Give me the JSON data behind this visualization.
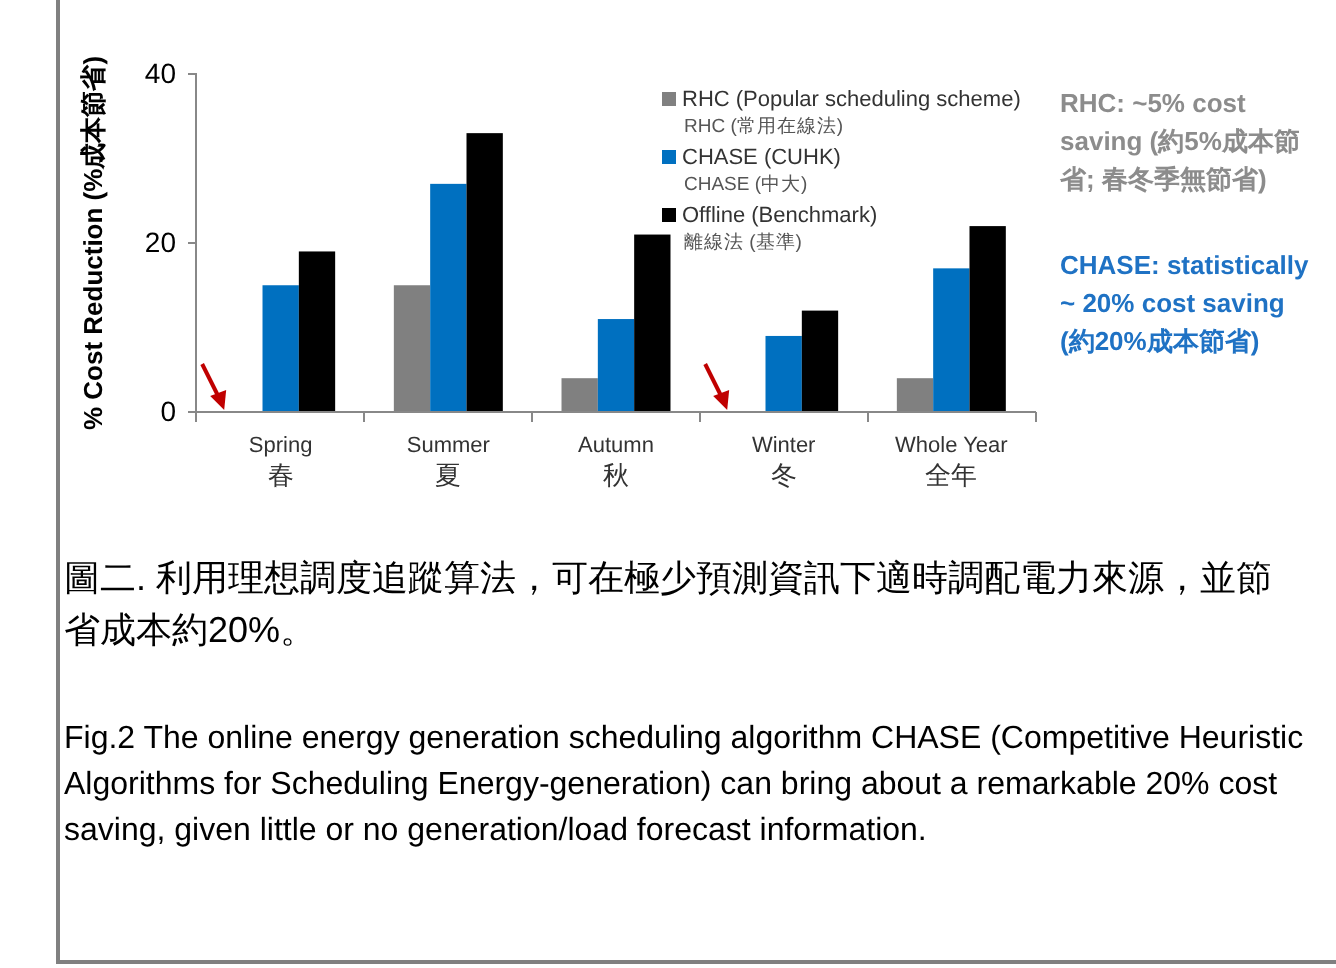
{
  "chart_data": {
    "type": "bar",
    "ylabel": "% Cost Reduction (%成本節省)",
    "categories": [
      "Spring\n春",
      "Summer\n夏",
      "Autumn\n秋",
      "Winter\n冬",
      "Whole Year\n全年"
    ],
    "series": [
      {
        "name": "RHC (Popular scheduling scheme)\nRHC (常用在線法)",
        "color": "#808080",
        "values": [
          0,
          15,
          4,
          0,
          4
        ]
      },
      {
        "name": "CHASE (CUHK)\nCHASE (中大)",
        "color": "#0070c0",
        "values": [
          15,
          27,
          11,
          9,
          17
        ]
      },
      {
        "name": "Offline (Benchmark)\n離線法 (基準)",
        "color": "#000000",
        "values": [
          19,
          33,
          21,
          12,
          22
        ]
      }
    ],
    "ylim": [
      0,
      40
    ],
    "yticks": [
      0,
      20,
      40
    ],
    "grid": false,
    "legend": "top right",
    "annotations": [
      "RHC: ~5% cost saving (約5%成本節省; 春冬季無節省)",
      "CHASE: statistically ~ 20% cost saving (約20%成本節省)",
      "圖二. 利用理想調度追蹤算法，可在極少預測資訊下適時調配電力來源，並節省成本約20%。",
      "Fig.2 The online energy generation scheduling algorithm CHASE (Competitive Heuristic Algorithms for Scheduling Energy-generation) can bring about a remarkable 20% cost saving, given little or no generation/load forecast information."
    ]
  }
}
